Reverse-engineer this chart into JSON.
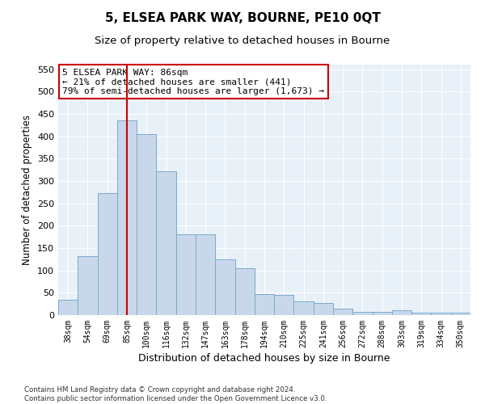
{
  "title": "5, ELSEA PARK WAY, BOURNE, PE10 0QT",
  "subtitle": "Size of property relative to detached houses in Bourne",
  "xlabel": "Distribution of detached houses by size in Bourne",
  "ylabel": "Number of detached properties",
  "bar_labels": [
    "38sqm",
    "54sqm",
    "69sqm",
    "85sqm",
    "100sqm",
    "116sqm",
    "132sqm",
    "147sqm",
    "163sqm",
    "178sqm",
    "194sqm",
    "210sqm",
    "225sqm",
    "241sqm",
    "256sqm",
    "272sqm",
    "288sqm",
    "303sqm",
    "319sqm",
    "334sqm",
    "350sqm"
  ],
  "bar_values": [
    35,
    132,
    272,
    435,
    405,
    322,
    181,
    181,
    125,
    104,
    47,
    46,
    30,
    28,
    15,
    7,
    8,
    10,
    5,
    5,
    6
  ],
  "bar_color": "#c8d8ea",
  "bar_edge_color": "#7aaacc",
  "vline_x": 3,
  "vline_color": "#cc0000",
  "annotation_text": "5 ELSEA PARK WAY: 86sqm\n← 21% of detached houses are smaller (441)\n79% of semi-detached houses are larger (1,673) →",
  "annotation_box_color": "#ffffff",
  "annotation_box_edge": "#cc0000",
  "ylim": [
    0,
    560
  ],
  "yticks": [
    0,
    50,
    100,
    150,
    200,
    250,
    300,
    350,
    400,
    450,
    500,
    550
  ],
  "bg_color": "#e8f0f8",
  "footer": "Contains HM Land Registry data © Crown copyright and database right 2024.\nContains public sector information licensed under the Open Government Licence v3.0.",
  "title_fontsize": 11,
  "subtitle_fontsize": 9.5
}
